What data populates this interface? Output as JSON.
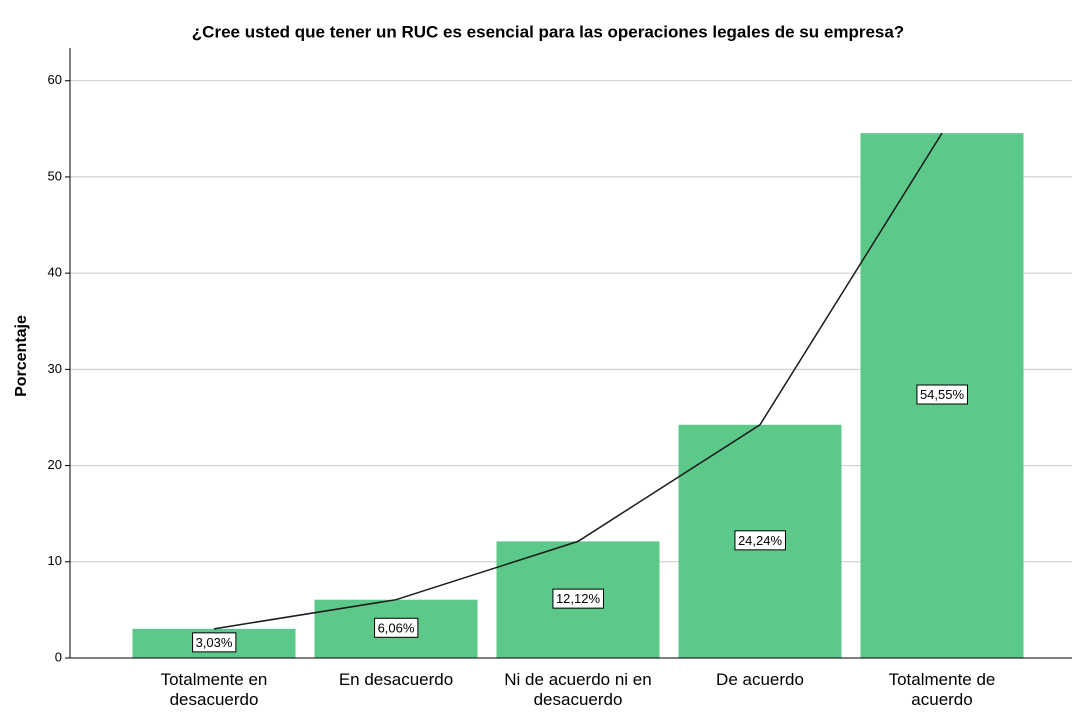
{
  "chart_data": {
    "type": "bar",
    "title": "¿Cree usted que tener un RUC es esencial para las operaciones legales de su empresa?",
    "y_label": "Porcentaje",
    "categories": [
      "Totalmente en desacuerdo",
      "En desacuerdo",
      "Ni de acuerdo ni en desacuerdo",
      "De acuerdo",
      "Totalmente de acuerdo"
    ],
    "values": [
      3.03,
      6.06,
      12.12,
      24.24,
      54.55
    ],
    "value_labels": [
      "3,03%",
      "6,06%",
      "12,12%",
      "24,24%",
      "54,55%"
    ],
    "color": "#5cc98a",
    "line": true,
    "line_color": "#1a1a1a",
    "ylim": [
      0,
      63.4
    ],
    "yticks": [
      0,
      10,
      20,
      30,
      40,
      50,
      60
    ],
    "grid": true
  }
}
